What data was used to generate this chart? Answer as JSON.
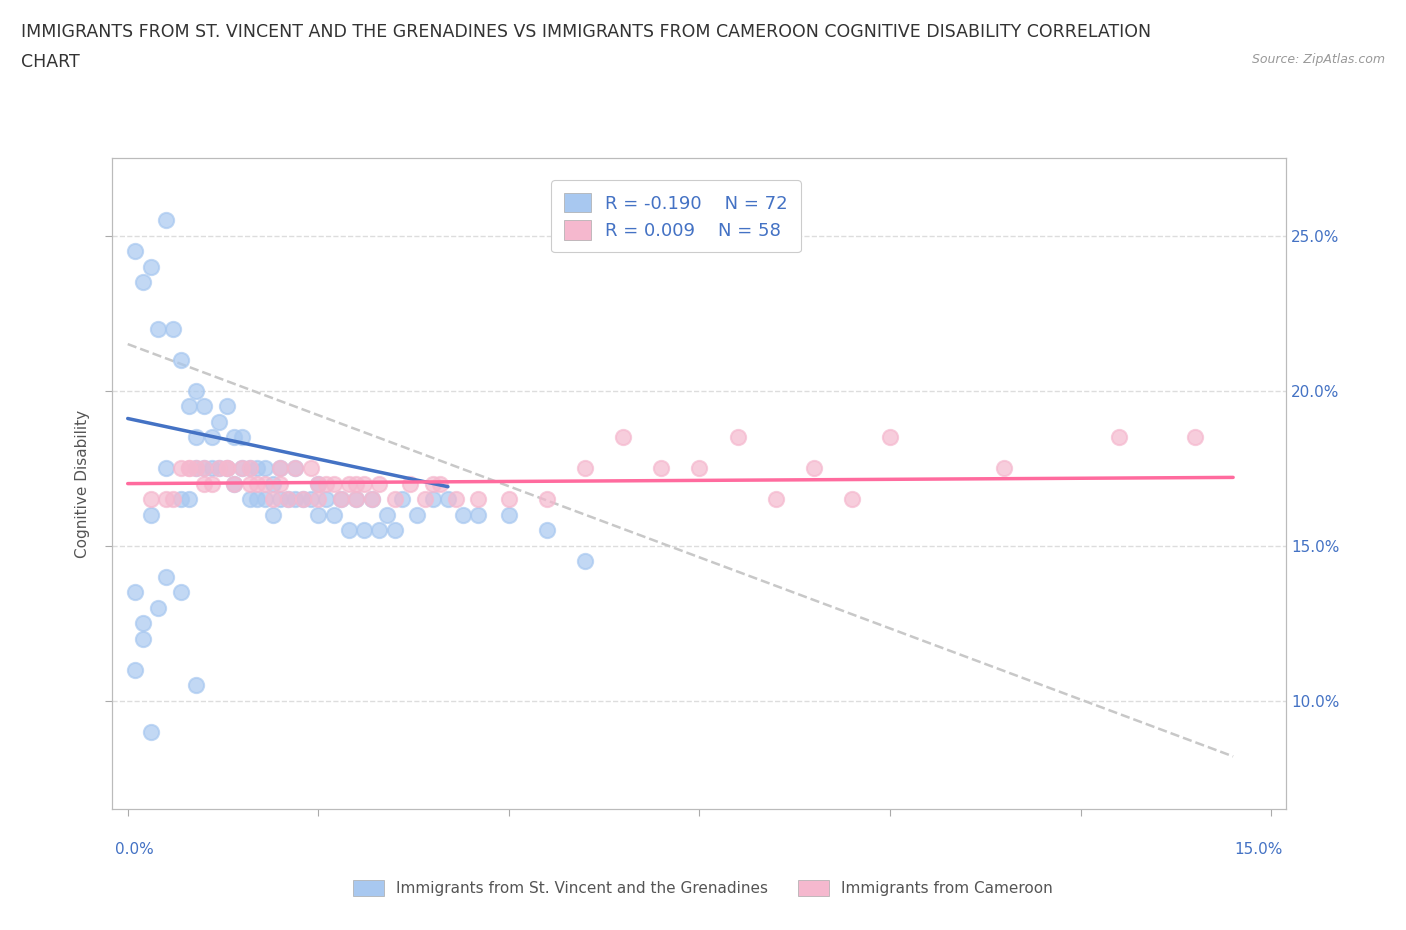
{
  "title_line1": "IMMIGRANTS FROM ST. VINCENT AND THE GRENADINES VS IMMIGRANTS FROM CAMEROON COGNITIVE DISABILITY CORRELATION",
  "title_line2": "CHART",
  "source": "Source: ZipAtlas.com",
  "ylabel": "Cognitive Disability",
  "xlim": [
    -0.002,
    0.152
  ],
  "ylim": [
    0.065,
    0.275
  ],
  "xticks": [
    0.0,
    0.025,
    0.05,
    0.075,
    0.1,
    0.125,
    0.15
  ],
  "yticks": [
    0.1,
    0.15,
    0.2,
    0.25
  ],
  "ytick_labels_right": [
    "10.0%",
    "15.0%",
    "20.0%",
    "25.0%"
  ],
  "color_blue": "#A8C8F0",
  "color_pink": "#F5B8CE",
  "color_line_blue": "#4472C4",
  "color_line_pink": "#FF6B9E",
  "color_line_dashed": "#C8C8C8",
  "R_blue": -0.19,
  "N_blue": 72,
  "R_pink": 0.009,
  "N_pink": 58,
  "blue_scatter_x": [
    0.001,
    0.002,
    0.003,
    0.003,
    0.004,
    0.005,
    0.005,
    0.006,
    0.007,
    0.007,
    0.008,
    0.008,
    0.009,
    0.009,
    0.009,
    0.01,
    0.01,
    0.011,
    0.011,
    0.012,
    0.012,
    0.013,
    0.013,
    0.014,
    0.014,
    0.015,
    0.015,
    0.016,
    0.016,
    0.017,
    0.017,
    0.018,
    0.018,
    0.019,
    0.019,
    0.02,
    0.02,
    0.021,
    0.022,
    0.022,
    0.023,
    0.024,
    0.025,
    0.025,
    0.026,
    0.027,
    0.028,
    0.029,
    0.03,
    0.031,
    0.032,
    0.033,
    0.034,
    0.035,
    0.036,
    0.038,
    0.04,
    0.042,
    0.044,
    0.046,
    0.05,
    0.055,
    0.06,
    0.001,
    0.001,
    0.002,
    0.003,
    0.004,
    0.002,
    0.005,
    0.007,
    0.009
  ],
  "blue_scatter_y": [
    0.245,
    0.235,
    0.24,
    0.16,
    0.22,
    0.255,
    0.175,
    0.22,
    0.21,
    0.165,
    0.195,
    0.165,
    0.2,
    0.185,
    0.175,
    0.195,
    0.175,
    0.185,
    0.175,
    0.19,
    0.175,
    0.195,
    0.175,
    0.185,
    0.17,
    0.185,
    0.175,
    0.175,
    0.165,
    0.175,
    0.165,
    0.175,
    0.165,
    0.17,
    0.16,
    0.175,
    0.165,
    0.165,
    0.175,
    0.165,
    0.165,
    0.165,
    0.17,
    0.16,
    0.165,
    0.16,
    0.165,
    0.155,
    0.165,
    0.155,
    0.165,
    0.155,
    0.16,
    0.155,
    0.165,
    0.16,
    0.165,
    0.165,
    0.16,
    0.16,
    0.16,
    0.155,
    0.145,
    0.135,
    0.11,
    0.12,
    0.09,
    0.13,
    0.125,
    0.14,
    0.135,
    0.105
  ],
  "pink_scatter_x": [
    0.003,
    0.005,
    0.007,
    0.008,
    0.009,
    0.01,
    0.011,
    0.012,
    0.013,
    0.014,
    0.015,
    0.016,
    0.017,
    0.018,
    0.019,
    0.02,
    0.021,
    0.022,
    0.023,
    0.024,
    0.025,
    0.026,
    0.027,
    0.028,
    0.029,
    0.03,
    0.031,
    0.032,
    0.033,
    0.035,
    0.037,
    0.039,
    0.041,
    0.043,
    0.046,
    0.05,
    0.055,
    0.06,
    0.065,
    0.07,
    0.075,
    0.08,
    0.085,
    0.09,
    0.095,
    0.1,
    0.115,
    0.13,
    0.14,
    0.006,
    0.008,
    0.01,
    0.013,
    0.016,
    0.02,
    0.025,
    0.03,
    0.04
  ],
  "pink_scatter_y": [
    0.165,
    0.165,
    0.175,
    0.175,
    0.175,
    0.17,
    0.17,
    0.175,
    0.175,
    0.17,
    0.175,
    0.17,
    0.17,
    0.17,
    0.165,
    0.175,
    0.165,
    0.175,
    0.165,
    0.175,
    0.165,
    0.17,
    0.17,
    0.165,
    0.17,
    0.165,
    0.17,
    0.165,
    0.17,
    0.165,
    0.17,
    0.165,
    0.17,
    0.165,
    0.165,
    0.165,
    0.165,
    0.175,
    0.185,
    0.175,
    0.175,
    0.185,
    0.165,
    0.175,
    0.165,
    0.185,
    0.175,
    0.185,
    0.185,
    0.165,
    0.175,
    0.175,
    0.175,
    0.175,
    0.17,
    0.17,
    0.17,
    0.17
  ],
  "blue_line_x0": 0.0,
  "blue_line_x1": 0.042,
  "blue_line_y0": 0.191,
  "blue_line_y1": 0.169,
  "pink_line_x0": 0.0,
  "pink_line_x1": 0.145,
  "pink_line_y0": 0.17,
  "pink_line_y1": 0.172,
  "dash_line_x0": 0.0,
  "dash_line_x1": 0.145,
  "dash_line_y0": 0.215,
  "dash_line_y1": 0.082,
  "background_color": "#FFFFFF",
  "grid_color": "#DDDDDD",
  "title_fontsize": 12.5,
  "axis_label_fontsize": 11,
  "tick_fontsize": 11,
  "legend_fontsize": 13
}
